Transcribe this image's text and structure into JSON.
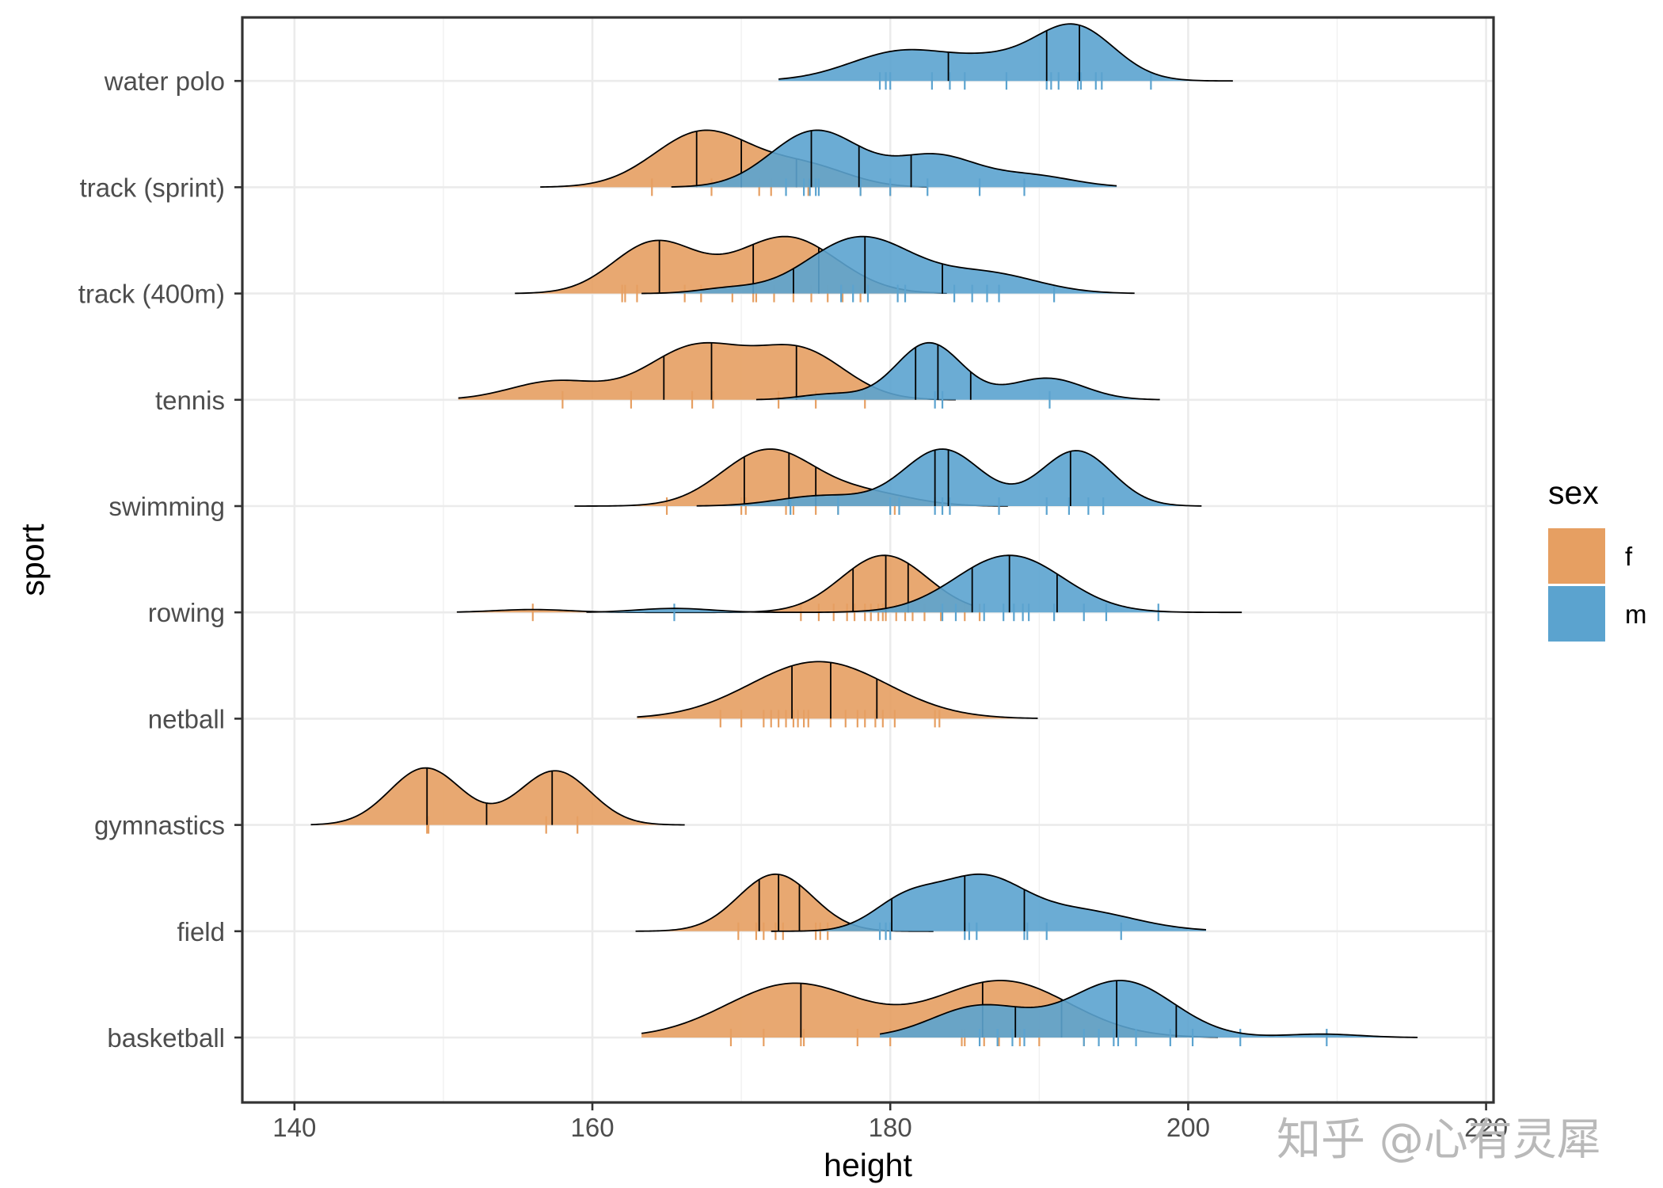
{
  "chart_data": {
    "type": "ridgeline",
    "xlabel": "height",
    "ylabel": "sport",
    "xlim": [
      136.5,
      220.5
    ],
    "xticks": [
      140,
      160,
      180,
      200,
      220
    ],
    "grid": true,
    "legend": {
      "title": "sex",
      "position": "right",
      "entries": [
        {
          "name": "f",
          "color": "#E69F62"
        },
        {
          "name": "m",
          "color": "#5BA3CF"
        }
      ]
    },
    "categories": [
      "basketball",
      "field",
      "gymnastics",
      "netball",
      "rowing",
      "swimming",
      "tennis",
      "track (400m)",
      "track (sprint)",
      "water polo"
    ],
    "series": [
      {
        "name": "f",
        "color": "#E69F62",
        "groups": [
          {
            "sport": "basketball",
            "range": [
              163.3,
              202.0
            ],
            "quantiles": [
              174.0,
              186.2,
              191.5
            ],
            "peaks": [
              {
                "mu": 173.5,
                "sd": 4.5,
                "w": 1.0
              },
              {
                "mu": 187.5,
                "sd": 4.5,
                "w": 1.05
              }
            ],
            "ticks": [
              169.3,
              171.5,
              174.0,
              174.2,
              177.8,
              180.0,
              184.8,
              185.0,
              186.3,
              187.3,
              188.7,
              190.0,
              193.0
            ]
          },
          {
            "sport": "field",
            "range": [
              162.9,
              182.9
            ],
            "quantiles": [
              171.2,
              172.5,
              173.9
            ],
            "peaks": [
              {
                "mu": 172.3,
                "sd": 2.5,
                "w": 1.0
              }
            ],
            "ticks": [
              169.8,
              171.0,
              171.5,
              172.3,
              172.8,
              175.0,
              175.3,
              175.8
            ]
          },
          {
            "sport": "gymnastics",
            "range": [
              141.1,
              166.2
            ],
            "quantiles": [
              148.9,
              152.9,
              157.3
            ],
            "peaks": [
              {
                "mu": 148.8,
                "sd": 2.4,
                "w": 1.0
              },
              {
                "mu": 157.5,
                "sd": 2.4,
                "w": 0.95
              }
            ],
            "ticks": [
              148.9,
              149.0,
              156.9,
              159.0
            ]
          },
          {
            "sport": "netball",
            "range": [
              163.0,
              189.9
            ],
            "quantiles": [
              173.4,
              176.0,
              179.1
            ],
            "peaks": [
              {
                "mu": 175.2,
                "sd": 4.6,
                "w": 1.0
              }
            ],
            "ticks": [
              168.6,
              170.0,
              171.5,
              172.0,
              172.5,
              173.0,
              173.5,
              173.8,
              174.2,
              174.5,
              176.0,
              177.0,
              177.8,
              178.3,
              179.0,
              179.5,
              180.3,
              183.0,
              183.3
            ]
          },
          {
            "sport": "rowing",
            "range": [
              150.9,
              185.5
            ],
            "quantiles": [
              177.5,
              179.7,
              181.2
            ],
            "peaks": [
              {
                "mu": 179.6,
                "sd": 2.9,
                "w": 1.0
              },
              {
                "mu": 156.0,
                "sd": 2.5,
                "w": 0.05
              }
            ],
            "ticks": [
              156.0,
              174.0,
              175.2,
              176.2,
              177.1,
              177.6,
              178.3,
              178.7,
              179.2,
              179.5,
              179.7,
              180.4,
              181.0,
              181.5,
              182.3,
              183.4,
              185.0,
              186.0
            ]
          },
          {
            "sport": "swimming",
            "range": [
              158.8,
              187.9
            ],
            "quantiles": [
              170.2,
              173.2,
              175.0
            ],
            "peaks": [
              {
                "mu": 171.8,
                "sd": 3.1,
                "w": 1.0
              },
              {
                "mu": 178.5,
                "sd": 3.0,
                "w": 0.22
              }
            ],
            "ticks": [
              165.0,
              170.0,
              170.3,
              173.0,
              173.5,
              175.0,
              176.5,
              180.3
            ]
          },
          {
            "sport": "tennis",
            "range": [
              151.0,
              184.4
            ],
            "quantiles": [
              164.8,
              168.0,
              173.7
            ],
            "peaks": [
              {
                "mu": 157.5,
                "sd": 3.0,
                "w": 0.28
              },
              {
                "mu": 167.0,
                "sd": 3.3,
                "w": 0.8
              },
              {
                "mu": 174.0,
                "sd": 3.0,
                "w": 0.72
              }
            ],
            "ticks": [
              158.0,
              162.6,
              166.7,
              168.1,
              172.5,
              175.0,
              178.3
            ]
          },
          {
            "sport": "track (400m)",
            "range": [
              154.8,
              183.8
            ],
            "quantiles": [
              164.5,
              170.8,
              175.2
            ],
            "peaks": [
              {
                "mu": 164.2,
                "sd": 2.8,
                "w": 0.9
              },
              {
                "mu": 173.0,
                "sd": 3.4,
                "w": 1.0
              }
            ],
            "ticks": [
              162.0,
              162.2,
              163.0,
              166.2,
              167.3,
              169.4,
              170.8,
              171.0,
              172.2,
              173.5,
              174.7,
              175.8,
              176.8,
              178.0
            ]
          },
          {
            "sport": "track (sprint)",
            "range": [
              156.5,
              182.5
            ],
            "quantiles": [
              167.0,
              170.0,
              173.7
            ],
            "peaks": [
              {
                "mu": 167.5,
                "sd": 3.3,
                "w": 1.0
              },
              {
                "mu": 174.5,
                "sd": 2.8,
                "w": 0.35
              }
            ],
            "ticks": [
              164.0,
              168.0,
              171.2,
              172.0,
              174.5,
              178.0,
              180.0
            ]
          }
        ]
      },
      {
        "name": "m",
        "color": "#5BA3CF",
        "groups": [
          {
            "sport": "basketball",
            "range": [
              179.3,
              215.4
            ],
            "quantiles": [
              188.4,
              195.2,
              199.2
            ],
            "peaks": [
              {
                "mu": 186.0,
                "sd": 3.2,
                "w": 0.55
              },
              {
                "mu": 195.5,
                "sd": 3.5,
                "w": 1.0
              },
              {
                "mu": 209.0,
                "sd": 2.5,
                "w": 0.06
              }
            ],
            "ticks": [
              186.0,
              187.2,
              188.2,
              189.0,
              193.0,
              194.0,
              195.0,
              195.3,
              196.5,
              198.8,
              200.3,
              203.5,
              209.3
            ]
          },
          {
            "sport": "field",
            "range": [
              172.0,
              201.2
            ],
            "quantiles": [
              180.1,
              185.0,
              189.0
            ],
            "peaks": [
              {
                "mu": 181.0,
                "sd": 2.2,
                "w": 0.5
              },
              {
                "mu": 186.0,
                "sd": 2.8,
                "w": 0.85
              },
              {
                "mu": 192.5,
                "sd": 3.8,
                "w": 0.35
              }
            ],
            "ticks": [
              179.3,
              179.7,
              180.0,
              185.0,
              185.3,
              185.8,
              189.0,
              189.2,
              190.5,
              195.5
            ]
          },
          {
            "sport": "rowing",
            "range": [
              159.6,
              203.6
            ],
            "quantiles": [
              185.5,
              188.0,
              191.2
            ],
            "peaks": [
              {
                "mu": 165.5,
                "sd": 2.5,
                "w": 0.07
              },
              {
                "mu": 188.0,
                "sd": 3.6,
                "w": 1.0
              }
            ],
            "ticks": [
              165.5,
              183.5,
              184.4,
              186.3,
              187.6,
              188.3,
              188.9,
              189.3,
              191.0,
              193.0,
              194.5,
              198.0
            ]
          },
          {
            "sport": "swimming",
            "range": [
              167.0,
              200.9
            ],
            "quantiles": [
              183.0,
              183.9,
              192.1
            ],
            "peaks": [
              {
                "mu": 175.5,
                "sd": 3.0,
                "w": 0.15
              },
              {
                "mu": 183.5,
                "sd": 2.6,
                "w": 0.82
              },
              {
                "mu": 192.5,
                "sd": 2.4,
                "w": 0.8
              }
            ],
            "ticks": [
              173.3,
              176.5,
              180.0,
              180.6,
              183.0,
              183.5,
              184.0,
              187.3,
              190.5,
              192.0,
              193.3,
              194.3
            ]
          },
          {
            "sport": "tennis",
            "range": [
              171.0,
              198.1
            ],
            "quantiles": [
              181.7,
              183.2,
              185.4
            ],
            "peaks": [
              {
                "mu": 182.6,
                "sd": 2.2,
                "w": 1.0
              },
              {
                "mu": 190.5,
                "sd": 2.5,
                "w": 0.38
              },
              {
                "mu": 176.0,
                "sd": 2.0,
                "w": 0.1
              }
            ],
            "ticks": [
              183.0,
              183.5,
              190.7
            ]
          },
          {
            "sport": "track (400m)",
            "range": [
              163.3,
              196.4
            ],
            "quantiles": [
              173.5,
              178.3,
              183.5
            ],
            "peaks": [
              {
                "mu": 178.0,
                "sd": 3.5,
                "w": 1.0
              },
              {
                "mu": 186.5,
                "sd": 3.4,
                "w": 0.35
              },
              {
                "mu": 169.0,
                "sd": 2.0,
                "w": 0.08
              }
            ],
            "ticks": [
              176.7,
              177.5,
              178.5,
              180.5,
              181.0,
              184.3,
              185.5,
              186.5,
              187.3,
              191.0
            ]
          },
          {
            "sport": "track (sprint)",
            "range": [
              165.3,
              195.2
            ],
            "quantiles": [
              174.7,
              177.9,
              181.4
            ],
            "peaks": [
              {
                "mu": 175.0,
                "sd": 3.0,
                "w": 1.0
              },
              {
                "mu": 183.0,
                "sd": 2.8,
                "w": 0.55
              },
              {
                "mu": 189.5,
                "sd": 2.8,
                "w": 0.2
              }
            ],
            "ticks": [
              173.0,
              174.2,
              174.6,
              175.0,
              175.2,
              178.0,
              180.0,
              182.5,
              186.0,
              189.0
            ]
          },
          {
            "sport": "water polo",
            "range": [
              172.5,
              203.0
            ],
            "quantiles": [
              183.9,
              190.5,
              192.7
            ],
            "peaks": [
              {
                "mu": 181.0,
                "sd": 3.6,
                "w": 0.55
              },
              {
                "mu": 192.3,
                "sd": 2.7,
                "w": 1.0
              },
              {
                "mu": 187.0,
                "sd": 2.5,
                "w": 0.25
              }
            ],
            "ticks": [
              179.3,
              179.7,
              180.0,
              182.8,
              184.0,
              185.0,
              187.8,
              190.5,
              190.8,
              191.3,
              192.6,
              192.8,
              193.8,
              194.2,
              197.5
            ]
          }
        ]
      }
    ]
  },
  "watermark": "知乎 @心有灵犀"
}
